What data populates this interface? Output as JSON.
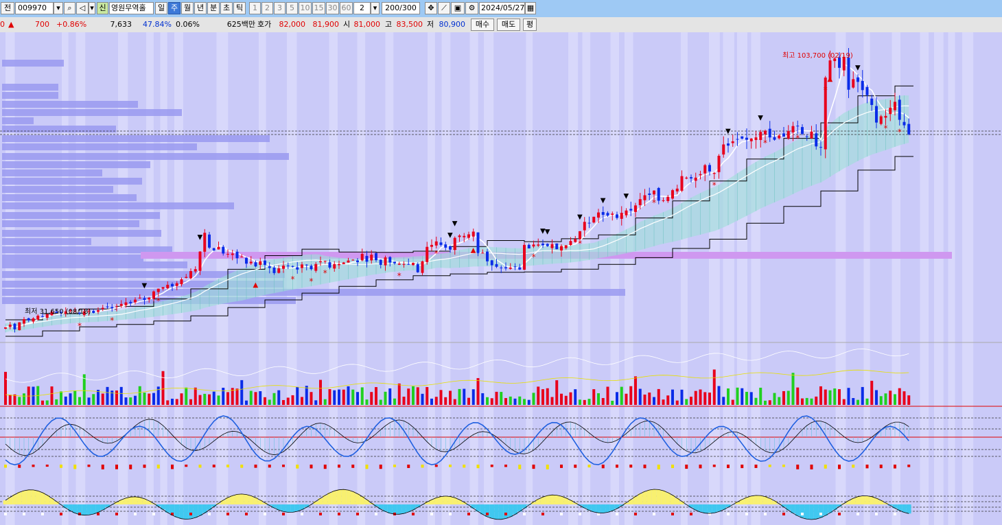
{
  "toolbar": {
    "prefix": "전",
    "stock_code": "009970",
    "stock_name": "영원무역홀",
    "mode_icon": "신",
    "periods": [
      "일",
      "주",
      "월",
      "년",
      "분",
      "초",
      "틱"
    ],
    "active_period": "주",
    "intervals": [
      "1",
      "2",
      "3",
      "5",
      "10",
      "15",
      "30",
      "60"
    ],
    "interval_value": "2",
    "count_value": "200",
    "count_total": "/300",
    "date_value": "2024/05/27",
    "icons": [
      "dropdown-icon",
      "search-icon",
      "speaker-icon",
      "chevron-down-icon",
      "crosshair-icon",
      "line-tool-icon",
      "save-icon",
      "settings-icon",
      "calendar-icon"
    ]
  },
  "quote": {
    "prefix_digit": "0",
    "change_arrow": "▲",
    "change": "700",
    "change_pct": "+0.86%",
    "volume": "7,633",
    "volume_ratio": "47.84%",
    "turnover_pct": "0.06%",
    "amount": "625백만",
    "ask_label": "호가",
    "ask": "82,000",
    "bid": "81,900",
    "open_label": "시",
    "open": "81,000",
    "high_label": "고",
    "high": "83,500",
    "low_label": "저",
    "low": "80,900",
    "buy_label": "매수",
    "sell_label": "매도",
    "avg_label": "평"
  },
  "chart_data": {
    "type": "candlestick",
    "annotations": {
      "high": "최고 103,700 (02/19)",
      "low": "최저 31,650 (08/18)"
    },
    "price_range": [
      29000,
      108000
    ],
    "colors": {
      "up": "#e8001c",
      "down": "#0a2ce8",
      "background": "#cacaf8",
      "cloud": "#9fe0d8",
      "volume_profile": "#9a9af0",
      "band_purple": "#cf98f0",
      "macd_red": "#e8001c",
      "signal_yellow": "#f8f070"
    },
    "closes": [
      32500,
      33200,
      32000,
      33800,
      34600,
      34300,
      34800,
      35500,
      35200,
      35900,
      36500,
      36200,
      36100,
      36600,
      36900,
      36600,
      36000,
      36600,
      36700,
      36200,
      36900,
      37500,
      37700,
      37400,
      37900,
      38500,
      38900,
      38700,
      39600,
      40100,
      39500,
      40100,
      41700,
      42400,
      42800,
      43400,
      43000,
      43800,
      44800,
      45400,
      46900,
      47400,
      51900,
      56700,
      52900,
      52200,
      53100,
      51400,
      51300,
      51400,
      50200,
      50600,
      48800,
      49300,
      48100,
      49400,
      48500,
      47700,
      46400,
      47600,
      48300,
      48300,
      48000,
      47300,
      48600,
      48400,
      47400,
      48700,
      49400,
      49500,
      47800,
      48700,
      48700,
      49100,
      49600,
      49800,
      49200,
      51300,
      49300,
      51100,
      49700,
      48500,
      50400,
      49100,
      48900,
      48800,
      48700,
      48600,
      49000,
      46600,
      49400,
      53100,
      53600,
      54500,
      53600,
      52900,
      52400,
      55400,
      56000,
      55900,
      56300,
      57000,
      51500,
      51600,
      49400,
      48400,
      48000,
      47700,
      47600,
      47800,
      48000,
      47300,
      53600,
      52700,
      53700,
      53700,
      53500,
      53300,
      53800,
      52500,
      53300,
      53500,
      54600,
      55100,
      57100,
      59500,
      59100,
      60800,
      61900,
      61300,
      61100,
      61600,
      60500,
      61800,
      62400,
      62400,
      63700,
      65300,
      66300,
      66400,
      67500,
      64900,
      65000,
      65900,
      67600,
      68000,
      71200,
      70800,
      70600,
      70800,
      71700,
      74000,
      72400,
      72000,
      76400,
      79300,
      79000,
      80100,
      80600,
      80800,
      80500,
      80800,
      81100,
      82500,
      82800,
      81100,
      80500,
      81600,
      81300,
      82700,
      84000,
      84000,
      82000,
      81200,
      82600,
      78800,
      78500,
      96400,
      100800,
      101300,
      98900,
      101700,
      93300,
      96000,
      95300,
      93200,
      91900,
      89400,
      84900,
      86500,
      86600,
      88700,
      90200,
      85600,
      84200,
      81900
    ],
    "series": [
      {
        "name": "volume"
      },
      {
        "name": "oscillator"
      },
      {
        "name": "macd"
      }
    ]
  }
}
